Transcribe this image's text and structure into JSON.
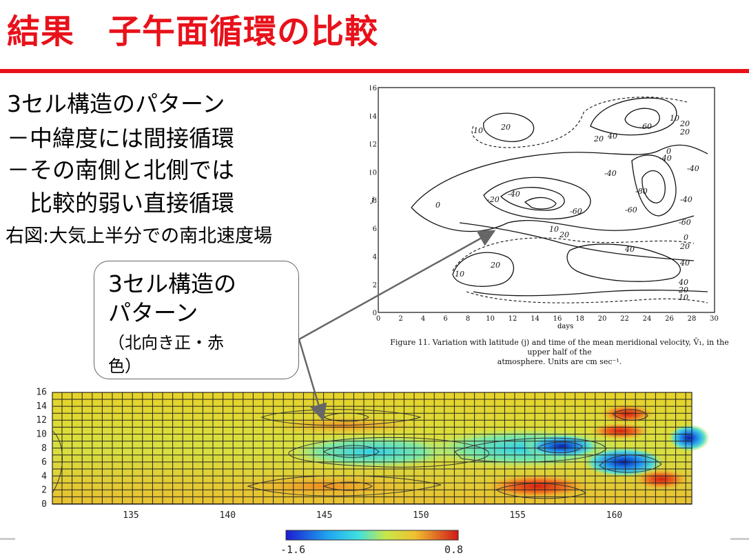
{
  "slide": {
    "title": "結果　子午面循環の比較",
    "bullets": [
      "3セル構造のパターン",
      "－中緯度には間接循環",
      "－その南側と北側では",
      "　比較的弱い直接循環"
    ],
    "note": "右図:大気上半分での南北速度場",
    "callout": {
      "line1": "3セル構造の",
      "line2": "パターン",
      "line3": "（北向き正・赤",
      "line4": "色）"
    }
  },
  "figure": {
    "y_ticks": [
      "0",
      "2",
      "4",
      "6",
      "8",
      "10",
      "12",
      "14",
      "16"
    ],
    "x_ticks": [
      "0",
      "2",
      "4",
      "6",
      "8",
      "10",
      "12",
      "14",
      "16",
      "18",
      "20",
      "22",
      "24",
      "26",
      "28",
      "30"
    ],
    "y_label": "j",
    "x_label": "days",
    "contour_labels": [
      "10",
      "20",
      "20",
      "40",
      "60",
      "10",
      "20",
      "20",
      "0",
      "-40",
      "0",
      "-20",
      "-40",
      "-60",
      "-40",
      "-80",
      "-60",
      "-40",
      "-60",
      "10",
      "20",
      "0",
      "20",
      "40",
      "20",
      "40",
      "10",
      "40",
      "20",
      "10",
      "-40"
    ],
    "caption_line1": "Figure 11.  Variation with latitude (j) and time of the mean meridional velocity, V̄₁, in the upper half of the",
    "caption_line2": "atmosphere.   Units are cm sec⁻¹."
  },
  "plot": {
    "y_ticks": [
      "0",
      "2",
      "4",
      "6",
      "8",
      "10",
      "12",
      "14",
      "16"
    ],
    "x_ticks": [
      "135",
      "140",
      "145",
      "150",
      "155",
      "160"
    ],
    "colorbar_min": "-1.6",
    "colorbar_max": "0.8"
  }
}
